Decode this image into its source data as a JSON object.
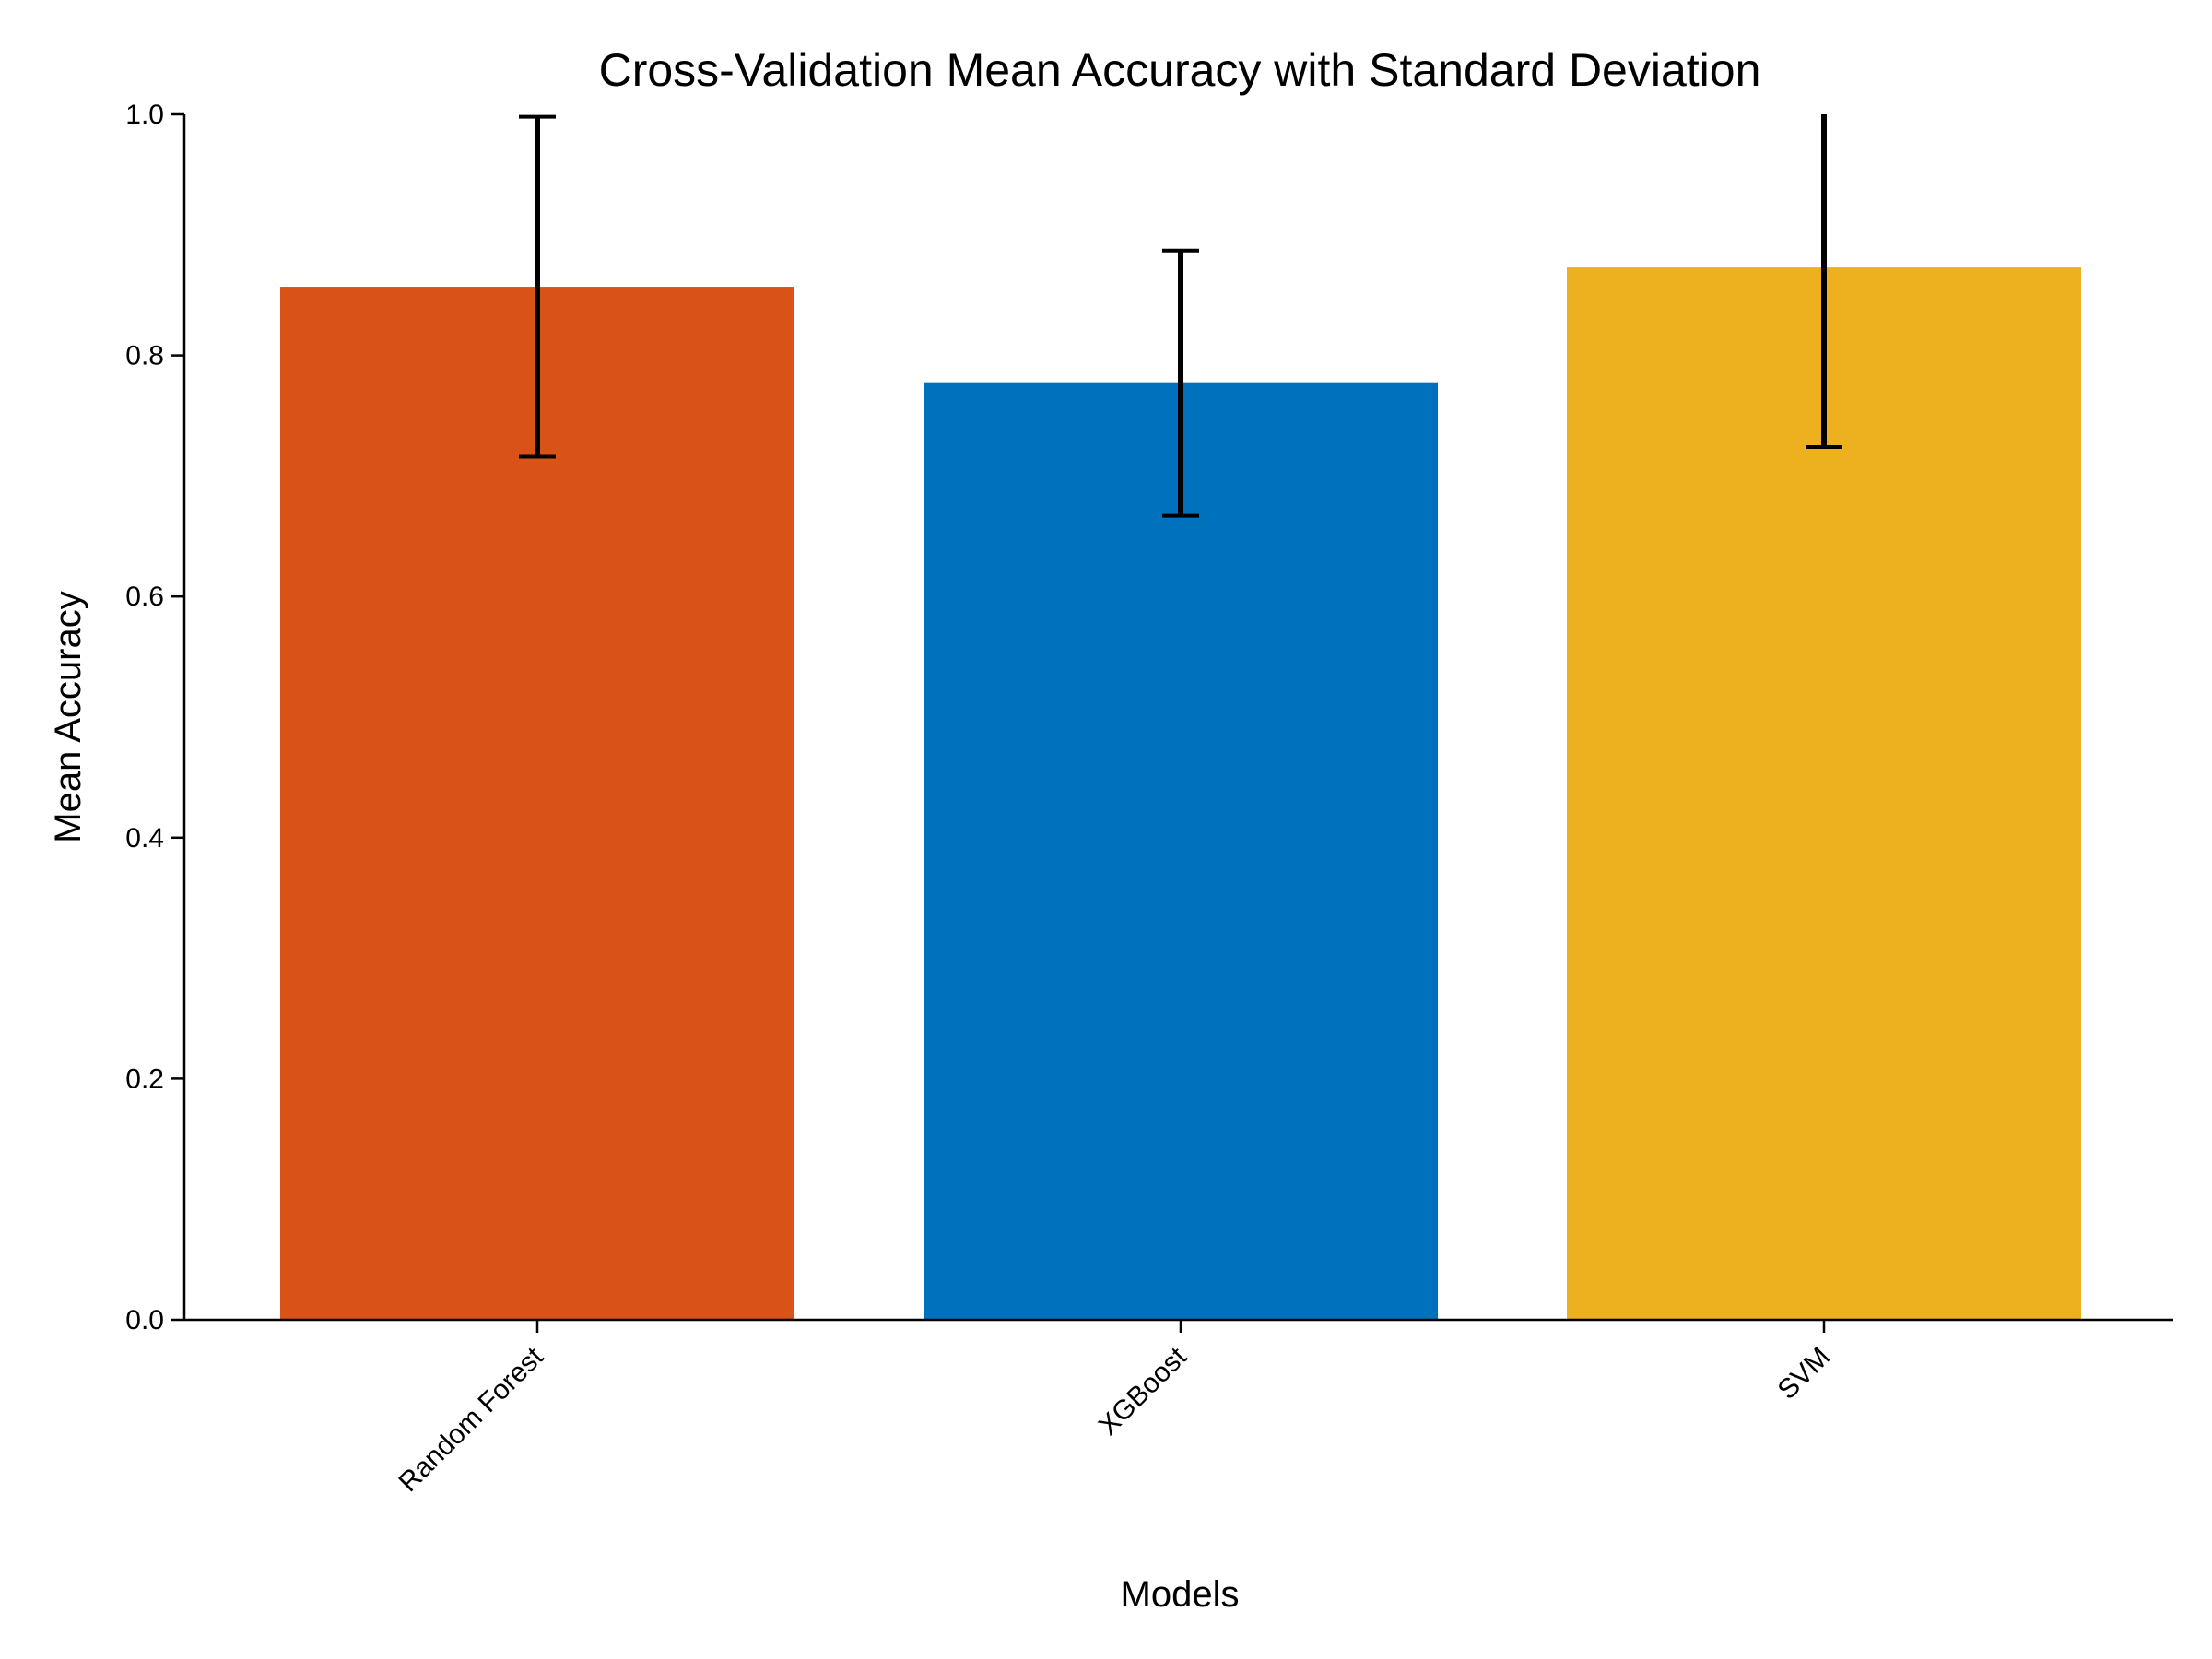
{
  "chart_data": {
    "type": "bar",
    "title": "Cross-Validation Mean Accuracy with Standard Deviation",
    "xlabel": "Models",
    "ylabel": "Mean Accuracy",
    "categories": [
      "Random Forest",
      "XGBoost",
      "SVM"
    ],
    "values": [
      0.857,
      0.777,
      0.873
    ],
    "errors": [
      0.141,
      0.11,
      0.149
    ],
    "colors": [
      "#D95319",
      "#0072BD",
      "#EDB120"
    ],
    "ylim": [
      0,
      1.0
    ],
    "yticks": [
      "0.0",
      "0.2",
      "0.4",
      "0.6",
      "0.8",
      "1.0"
    ],
    "grid": false,
    "legend": "none"
  }
}
